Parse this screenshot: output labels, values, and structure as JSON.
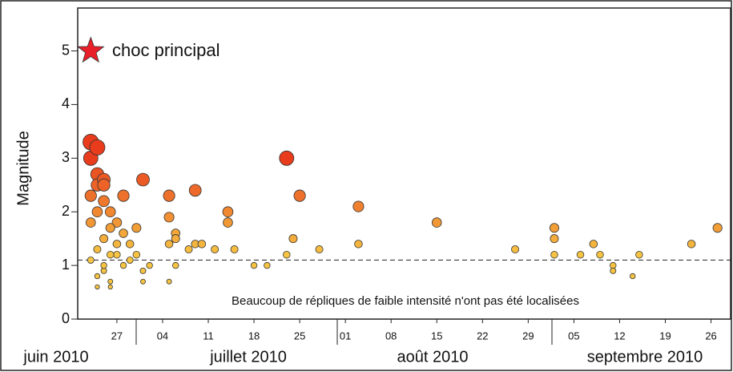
{
  "chart_data": {
    "type": "scatter",
    "y_label": "Magnitude",
    "annotations": [
      "choc principal",
      "Beaucoup de répliques de faible intensité n'ont pas été localisées"
    ],
    "months": [
      "juin 2010",
      "juillet 2010",
      "août 2010",
      "septembre 2010"
    ],
    "xlim": [
      "2010-06-21",
      "2010-09-29"
    ],
    "xticks": [
      {
        "value": "2010-06-27",
        "label": "27"
      },
      {
        "value": "2010-07-04",
        "label": "04"
      },
      {
        "value": "2010-07-11",
        "label": "11"
      },
      {
        "value": "2010-07-18",
        "label": "18"
      },
      {
        "value": "2010-07-25",
        "label": "25"
      },
      {
        "value": "2010-08-01",
        "label": "01"
      },
      {
        "value": "2010-08-08",
        "label": "08"
      },
      {
        "value": "2010-08-15",
        "label": "15"
      },
      {
        "value": "2010-08-22",
        "label": "22"
      },
      {
        "value": "2010-08-29",
        "label": "29"
      },
      {
        "value": "2010-09-05",
        "label": "05"
      },
      {
        "value": "2010-09-12",
        "label": "12"
      },
      {
        "value": "2010-09-19",
        "label": "19"
      },
      {
        "value": "2010-09-26",
        "label": "26"
      }
    ],
    "ylim": [
      0,
      5.8
    ],
    "yticks": [
      0,
      1,
      2,
      3,
      4,
      5
    ],
    "reference_line": 1.1,
    "mainshock": {
      "x": "2010-06-23",
      "value": 5,
      "color": "#e8202a"
    },
    "series": [
      {
        "x": [
          "2010-06-23",
          "2010-06-23",
          "2010-06-24",
          "2010-06-24",
          "2010-06-24",
          "2010-06-25",
          "2010-06-25",
          "2010-06-25",
          "2010-06-24",
          "2010-06-26",
          "2010-06-28",
          "2010-07-01",
          "2010-07-05",
          "2010-07-09",
          "2010-07-14",
          "2010-07-23",
          "2010-07-25",
          "2010-08-03",
          "2010-08-15",
          "2010-07-14",
          "2010-07-05",
          "2010-07-06",
          "2010-07-06",
          "2010-07-05",
          "2010-07-09",
          "2010-07-10",
          "2010-07-08",
          "2010-07-12",
          "2010-07-15",
          "2010-07-18",
          "2010-07-20",
          "2010-07-23",
          "2010-07-24",
          "2010-07-28",
          "2010-08-03",
          "2010-08-27",
          "2010-09-02",
          "2010-09-02",
          "2010-09-02",
          "2010-09-06",
          "2010-09-08",
          "2010-09-09",
          "2010-09-11",
          "2010-09-11",
          "2010-09-14",
          "2010-09-15",
          "2010-09-23",
          "2010-09-27",
          "2010-07-01",
          "2010-07-01",
          "2010-07-02",
          "2010-07-05",
          "2010-07-06",
          "2010-06-30",
          "2010-06-29",
          "2010-06-28",
          "2010-06-27",
          "2010-06-26",
          "2010-06-27",
          "2010-06-28",
          "2010-06-26",
          "2010-06-25",
          "2010-06-24",
          "2010-06-24",
          "2010-06-26",
          "2010-06-25",
          "2010-06-24",
          "2010-06-23",
          "2010-06-23",
          "2010-06-23",
          "2010-06-25",
          "2010-06-29",
          "2010-06-27",
          "2010-06-26",
          "2010-06-30"
        ],
        "values": [
          3.3,
          3.0,
          3.2,
          2.7,
          2.5,
          2.6,
          2.2,
          2.5,
          2.0,
          2.0,
          2.3,
          2.6,
          2.3,
          2.4,
          2.0,
          3.0,
          2.3,
          2.1,
          1.8,
          1.8,
          1.9,
          1.6,
          1.5,
          1.4,
          1.4,
          1.4,
          1.3,
          1.3,
          1.3,
          1.0,
          1.0,
          1.2,
          1.5,
          1.3,
          1.4,
          1.3,
          1.7,
          1.5,
          1.2,
          1.2,
          1.4,
          1.2,
          1.0,
          0.9,
          0.8,
          1.2,
          1.4,
          1.7,
          0.9,
          0.7,
          1.0,
          0.7,
          1.0,
          1.7,
          1.4,
          1.6,
          1.8,
          1.7,
          1.2,
          1.0,
          0.7,
          0.9,
          0.8,
          0.6,
          0.6,
          1.5,
          1.3,
          1.1,
          1.8,
          2.3,
          1.0,
          1.1,
          1.4,
          1.2,
          1.2
        ]
      }
    ]
  }
}
